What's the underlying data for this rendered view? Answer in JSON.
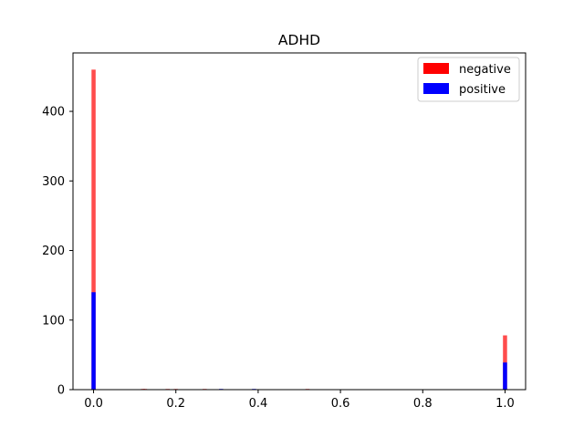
{
  "chart_data": {
    "type": "bar",
    "title": "ADHD",
    "xlabel": "",
    "ylabel": "",
    "xlim": [
      -0.05,
      1.05
    ],
    "ylim": [
      0,
      484
    ],
    "x_ticks": [
      0.0,
      0.2,
      0.4,
      0.6,
      0.8,
      1.0
    ],
    "x_tick_labels": [
      "0.0",
      "0.2",
      "0.4",
      "0.6",
      "0.8",
      "1.0"
    ],
    "y_ticks": [
      0,
      100,
      200,
      300,
      400
    ],
    "y_tick_labels": [
      "0",
      "100",
      "200",
      "300",
      "400"
    ],
    "bin_width": 0.01,
    "grid": false,
    "legend_position": "top-right",
    "series": [
      {
        "name": "negative",
        "color": "#ff0000",
        "alpha": 0.7,
        "bins": [
          {
            "x": 0.0,
            "count": 460
          },
          {
            "x": 0.12,
            "count": 1
          },
          {
            "x": 0.125,
            "count": 1
          },
          {
            "x": 0.18,
            "count": 1
          },
          {
            "x": 0.2,
            "count": 1
          },
          {
            "x": 0.27,
            "count": 1
          },
          {
            "x": 0.52,
            "count": 1
          },
          {
            "x": 1.0,
            "count": 78
          }
        ]
      },
      {
        "name": "positive",
        "color": "#0000ff",
        "alpha": 1.0,
        "bins": [
          {
            "x": 0.0,
            "count": 140
          },
          {
            "x": 0.31,
            "count": 1
          },
          {
            "x": 0.39,
            "count": 1
          },
          {
            "x": 1.0,
            "count": 39
          }
        ]
      }
    ]
  }
}
